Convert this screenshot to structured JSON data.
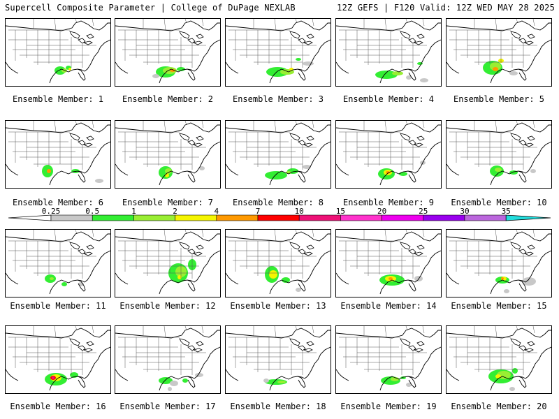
{
  "header": {
    "title": "Supercell Composite Parameter | College of DuPage NEXLAB",
    "run_info": "12Z GEFS | F120 Valid: 12Z WED MAY 28 2025"
  },
  "colorbar": {
    "ticks": [
      "0.25",
      "0.5",
      "1",
      "2",
      "4",
      "7",
      "10",
      "15",
      "20",
      "25",
      "30",
      "35"
    ],
    "colors": [
      "#c8c8c8",
      "#33ee33",
      "#99ee33",
      "#f5f500",
      "#ff9900",
      "#ff0000",
      "#ee1177",
      "#ff33cc",
      "#ee00ee",
      "#9900ee",
      "#bb66dd",
      "#22dddd"
    ]
  },
  "members": [
    {
      "label": "Ensemble Member: 1"
    },
    {
      "label": "Ensemble Member: 2"
    },
    {
      "label": "Ensemble Member: 3"
    },
    {
      "label": "Ensemble Member: 4"
    },
    {
      "label": "Ensemble Member: 5"
    },
    {
      "label": "Ensemble Member: 6"
    },
    {
      "label": "Ensemble Member: 7"
    },
    {
      "label": "Ensemble Member: 8"
    },
    {
      "label": "Ensemble Member: 9"
    },
    {
      "label": "Ensemble Member: 10"
    },
    {
      "label": "Ensemble Member: 11"
    },
    {
      "label": "Ensemble Member: 12"
    },
    {
      "label": "Ensemble Member: 13"
    },
    {
      "label": "Ensemble Member: 14"
    },
    {
      "label": "Ensemble Member: 15"
    },
    {
      "label": "Ensemble Member: 16"
    },
    {
      "label": "Ensemble Member: 17"
    },
    {
      "label": "Ensemble Member: 18"
    },
    {
      "label": "Ensemble Member: 19"
    },
    {
      "label": "Ensemble Member: 20"
    }
  ]
}
